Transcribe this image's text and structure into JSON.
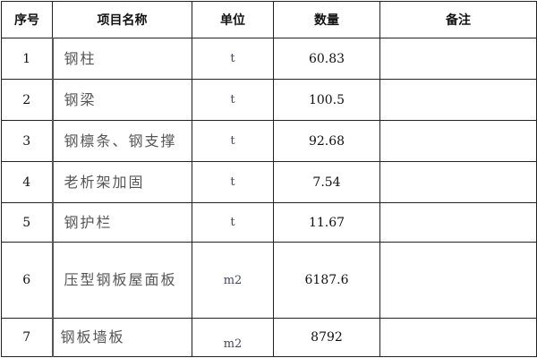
{
  "table": {
    "headers": [
      "序号",
      "项目名称",
      "单位",
      "数量",
      "备注"
    ],
    "rows": [
      {
        "no": "1",
        "name": "钢柱",
        "unit": "t",
        "qty": "60.83",
        "note": ""
      },
      {
        "no": "2",
        "name": "钢梁",
        "unit": "t",
        "qty": "100.5",
        "note": ""
      },
      {
        "no": "3",
        "name": "钢檩条、钢支撑",
        "unit": "t",
        "qty": "92.68",
        "note": ""
      },
      {
        "no": "4",
        "name": "老析架加固",
        "unit": "t",
        "qty": "7.54",
        "note": ""
      },
      {
        "no": "5",
        "name": "钢护栏",
        "unit": "t",
        "qty": "11.67",
        "note": ""
      },
      {
        "no": "6",
        "name": "压型钢板屋面板",
        "unit": "m2",
        "qty": "6187.6",
        "note": ""
      },
      {
        "no": "7",
        "name": "钢板墙板",
        "unit": "m2",
        "qty": "8792",
        "note": ""
      }
    ]
  }
}
